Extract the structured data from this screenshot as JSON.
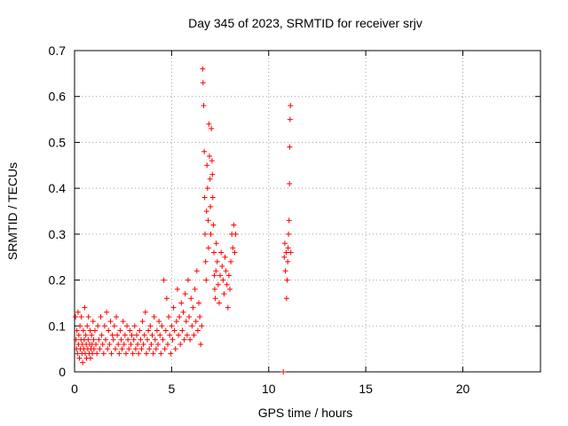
{
  "chart_data": {
    "type": "scatter",
    "title": "Day 345 of 2023, SRMTID for receiver srjv",
    "xlabel": "GPS time / hours",
    "ylabel": "SRMTID / TECUs",
    "xlim": [
      0,
      24
    ],
    "ylim": [
      0,
      0.7
    ],
    "xticks": [
      0,
      5,
      10,
      15,
      20
    ],
    "xtick_labels": [
      "0",
      "5",
      "10",
      "15",
      "20"
    ],
    "yticks": [
      0,
      0.1,
      0.2,
      0.3,
      0.4,
      0.5,
      0.6,
      0.7
    ],
    "ytick_labels": [
      "0",
      "0.1",
      "0.2",
      "0.3",
      "0.4",
      "0.5",
      "0.6",
      "0.7"
    ],
    "grid": true,
    "marker": "plus",
    "color": "#ff0000",
    "series": [
      {
        "name": "SRMTID",
        "points": [
          [
            0.05,
            0.12
          ],
          [
            0.08,
            0.07
          ],
          [
            0.1,
            0.05
          ],
          [
            0.12,
            0.09
          ],
          [
            0.15,
            0.04
          ],
          [
            0.18,
            0.13
          ],
          [
            0.2,
            0.06
          ],
          [
            0.22,
            0.08
          ],
          [
            0.25,
            0.03
          ],
          [
            0.28,
            0.1
          ],
          [
            0.3,
            0.05
          ],
          [
            0.33,
            0.07
          ],
          [
            0.35,
            0.12
          ],
          [
            0.38,
            0.04
          ],
          [
            0.4,
            0.06
          ],
          [
            0.42,
            0.02
          ],
          [
            0.45,
            0.09
          ],
          [
            0.48,
            0.05
          ],
          [
            0.5,
            0.07
          ],
          [
            0.52,
            0.14
          ],
          [
            0.55,
            0.04
          ],
          [
            0.58,
            0.08
          ],
          [
            0.6,
            0.06
          ],
          [
            0.62,
            0.03
          ],
          [
            0.65,
            0.1
          ],
          [
            0.68,
            0.05
          ],
          [
            0.7,
            0.07
          ],
          [
            0.72,
            0.12
          ],
          [
            0.75,
            0.04
          ],
          [
            0.78,
            0.06
          ],
          [
            0.8,
            0.09
          ],
          [
            0.82,
            0.03
          ],
          [
            0.85,
            0.05
          ],
          [
            0.88,
            0.08
          ],
          [
            0.9,
            0.06
          ],
          [
            0.92,
            0.04
          ],
          [
            0.95,
            0.11
          ],
          [
            0.98,
            0.07
          ],
          [
            1.0,
            0.05
          ],
          [
            1.05,
            0.09
          ],
          [
            1.1,
            0.06
          ],
          [
            1.15,
            0.04
          ],
          [
            1.2,
            0.1
          ],
          [
            1.25,
            0.07
          ],
          [
            1.3,
            0.05
          ],
          [
            1.35,
            0.12
          ],
          [
            1.4,
            0.08
          ],
          [
            1.45,
            0.06
          ],
          [
            1.5,
            0.04
          ],
          [
            1.55,
            0.1
          ],
          [
            1.6,
            0.07
          ],
          [
            1.65,
            0.13
          ],
          [
            1.7,
            0.05
          ],
          [
            1.75,
            0.09
          ],
          [
            1.8,
            0.06
          ],
          [
            1.85,
            0.11
          ],
          [
            1.9,
            0.04
          ],
          [
            1.95,
            0.08
          ],
          [
            2.0,
            0.07
          ],
          [
            2.05,
            0.1
          ],
          [
            2.1,
            0.05
          ],
          [
            2.15,
            0.12
          ],
          [
            2.2,
            0.08
          ],
          [
            2.25,
            0.06
          ],
          [
            2.3,
            0.04
          ],
          [
            2.35,
            0.09
          ],
          [
            2.4,
            0.07
          ],
          [
            2.45,
            0.05
          ],
          [
            2.5,
            0.11
          ],
          [
            2.55,
            0.06
          ],
          [
            2.6,
            0.08
          ],
          [
            2.65,
            0.04
          ],
          [
            2.7,
            0.1
          ],
          [
            2.75,
            0.07
          ],
          [
            2.8,
            0.05
          ],
          [
            2.85,
            0.09
          ],
          [
            2.9,
            0.06
          ],
          [
            2.95,
            0.08
          ],
          [
            3.0,
            0.04
          ],
          [
            3.05,
            0.07
          ],
          [
            3.1,
            0.1
          ],
          [
            3.15,
            0.05
          ],
          [
            3.2,
            0.08
          ],
          [
            3.25,
            0.06
          ],
          [
            3.3,
            0.04
          ],
          [
            3.35,
            0.09
          ],
          [
            3.4,
            0.07
          ],
          [
            3.45,
            0.05
          ],
          [
            3.5,
            0.11
          ],
          [
            3.55,
            0.06
          ],
          [
            3.6,
            0.08
          ],
          [
            3.65,
            0.13
          ],
          [
            3.7,
            0.04
          ],
          [
            3.75,
            0.07
          ],
          [
            3.8,
            0.09
          ],
          [
            3.85,
            0.05
          ],
          [
            3.9,
            0.1
          ],
          [
            3.95,
            0.06
          ],
          [
            4.0,
            0.08
          ],
          [
            4.05,
            0.04
          ],
          [
            4.1,
            0.12
          ],
          [
            4.15,
            0.07
          ],
          [
            4.2,
            0.05
          ],
          [
            4.25,
            0.09
          ],
          [
            4.3,
            0.06
          ],
          [
            4.35,
            0.11
          ],
          [
            4.4,
            0.08
          ],
          [
            4.45,
            0.04
          ],
          [
            4.5,
            0.1
          ],
          [
            4.55,
            0.07
          ],
          [
            4.6,
            0.2
          ],
          [
            4.65,
            0.05
          ],
          [
            4.7,
            0.09
          ],
          [
            4.75,
            0.16
          ],
          [
            4.8,
            0.06
          ],
          [
            4.85,
            0.12
          ],
          [
            4.9,
            0.08
          ],
          [
            4.95,
            0.04
          ],
          [
            5.0,
            0.1
          ],
          [
            5.05,
            0.07
          ],
          [
            5.1,
            0.14
          ],
          [
            5.15,
            0.09
          ],
          [
            5.2,
            0.05
          ],
          [
            5.25,
            0.11
          ],
          [
            5.3,
            0.18
          ],
          [
            5.35,
            0.08
          ],
          [
            5.4,
            0.12
          ],
          [
            5.45,
            0.06
          ],
          [
            5.5,
            0.15
          ],
          [
            5.55,
            0.09
          ],
          [
            5.6,
            0.13
          ],
          [
            5.65,
            0.07
          ],
          [
            5.7,
            0.17
          ],
          [
            5.75,
            0.11
          ],
          [
            5.8,
            0.08
          ],
          [
            5.85,
            0.2
          ],
          [
            5.9,
            0.12
          ],
          [
            5.95,
            0.07
          ],
          [
            6.0,
            0.16
          ],
          [
            6.05,
            0.1
          ],
          [
            6.1,
            0.14
          ],
          [
            6.15,
            0.08
          ],
          [
            6.2,
            0.18
          ],
          [
            6.25,
            0.11
          ],
          [
            6.3,
            0.22
          ],
          [
            6.35,
            0.09
          ],
          [
            6.4,
            0.15
          ],
          [
            6.45,
            0.12
          ],
          [
            6.5,
            0.06
          ],
          [
            6.55,
            0.1
          ],
          [
            6.6,
            0.66
          ],
          [
            6.62,
            0.63
          ],
          [
            6.65,
            0.58
          ],
          [
            6.68,
            0.48
          ],
          [
            6.7,
            0.38
          ],
          [
            6.72,
            0.3
          ],
          [
            6.75,
            0.24
          ],
          [
            6.78,
            0.2
          ],
          [
            6.8,
            0.35
          ],
          [
            6.82,
            0.45
          ],
          [
            6.85,
            0.4
          ],
          [
            6.88,
            0.33
          ],
          [
            6.9,
            0.27
          ],
          [
            6.92,
            0.54
          ],
          [
            6.95,
            0.47
          ],
          [
            6.98,
            0.42
          ],
          [
            7.0,
            0.36
          ],
          [
            7.02,
            0.3
          ],
          [
            7.05,
            0.53
          ],
          [
            7.08,
            0.46
          ],
          [
            7.1,
            0.43
          ],
          [
            7.12,
            0.38
          ],
          [
            7.15,
            0.32
          ],
          [
            7.18,
            0.26
          ],
          [
            7.2,
            0.21
          ],
          [
            7.22,
            0.18
          ],
          [
            7.25,
            0.16
          ],
          [
            7.28,
            0.22
          ],
          [
            7.3,
            0.28
          ],
          [
            7.35,
            0.24
          ],
          [
            7.4,
            0.19
          ],
          [
            7.45,
            0.15
          ],
          [
            7.5,
            0.21
          ],
          [
            7.55,
            0.26
          ],
          [
            7.6,
            0.23
          ],
          [
            7.65,
            0.2
          ],
          [
            7.7,
            0.17
          ],
          [
            7.75,
            0.25
          ],
          [
            7.8,
            0.22
          ],
          [
            7.85,
            0.19
          ],
          [
            7.9,
            0.14
          ],
          [
            7.95,
            0.21
          ],
          [
            8.0,
            0.18
          ],
          [
            8.05,
            0.24
          ],
          [
            8.1,
            0.3
          ],
          [
            8.15,
            0.27
          ],
          [
            8.2,
            0.32
          ],
          [
            8.25,
            0.26
          ],
          [
            8.3,
            0.3
          ],
          [
            10.75,
            0.0
          ],
          [
            10.8,
            0.25
          ],
          [
            10.83,
            0.28
          ],
          [
            10.86,
            0.22
          ],
          [
            10.9,
            0.26
          ],
          [
            10.92,
            0.16
          ],
          [
            10.95,
            0.2
          ],
          [
            10.98,
            0.24
          ],
          [
            11.0,
            0.27
          ],
          [
            11.02,
            0.3
          ],
          [
            11.05,
            0.33
          ],
          [
            11.07,
            0.41
          ],
          [
            11.08,
            0.49
          ],
          [
            11.1,
            0.55
          ],
          [
            11.12,
            0.58
          ],
          [
            11.14,
            0.26
          ]
        ]
      }
    ]
  }
}
